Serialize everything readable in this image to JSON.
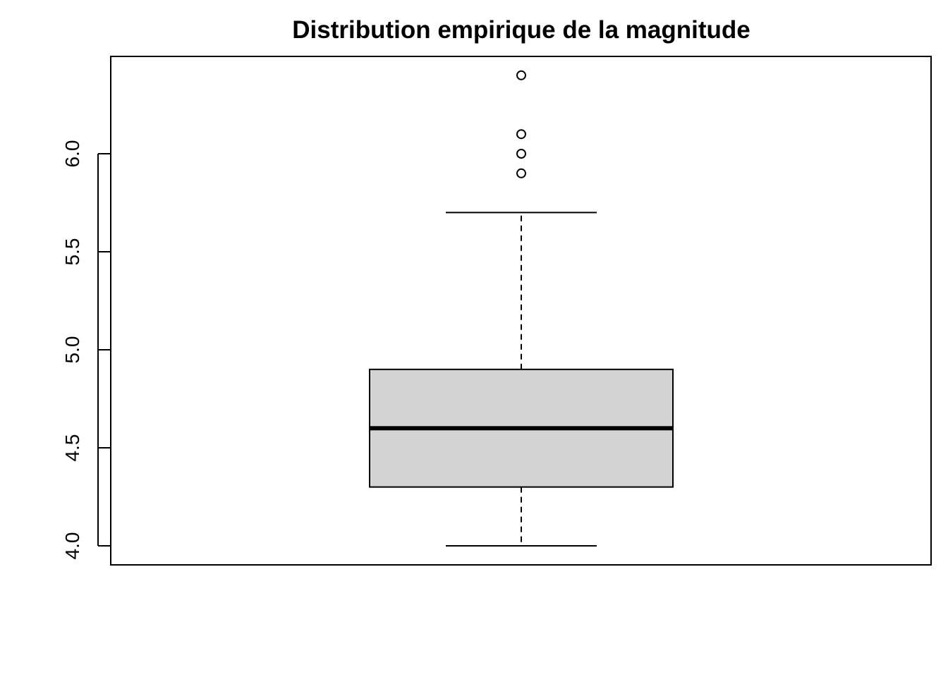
{
  "chart_data": {
    "type": "boxplot",
    "title": "Distribution empirique de la magnitude",
    "xlabel": "",
    "ylabel": "",
    "ylim": [
      3.9,
      6.48
    ],
    "yticks": [
      4.0,
      4.5,
      5.0,
      5.5,
      6.0
    ],
    "ytick_labels": [
      "4.0",
      "4.5",
      "5.0",
      "5.5",
      "6.0"
    ],
    "grid": false,
    "legend": "none",
    "box": {
      "whisker_low": 4.0,
      "q1": 4.3,
      "median": 4.6,
      "q3": 4.9,
      "whisker_high": 5.7
    },
    "outliers": [
      5.9,
      6.0,
      6.1,
      6.4
    ],
    "box_fill": "#d3d3d3",
    "line_color": "#000000"
  }
}
